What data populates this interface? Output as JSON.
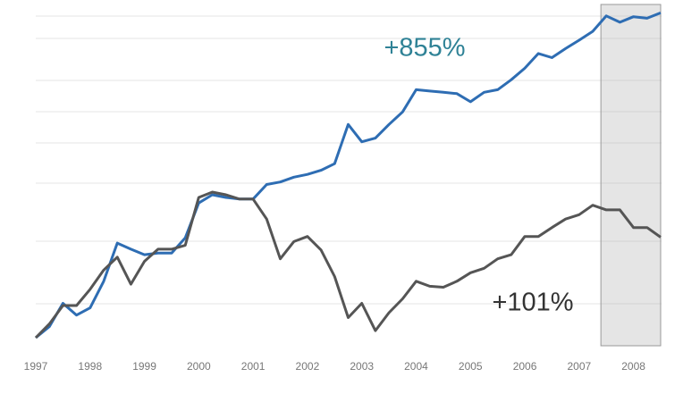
{
  "chart_data": {
    "type": "line",
    "x": [
      1997,
      1997.25,
      1997.5,
      1997.75,
      1998,
      1998.25,
      1998.5,
      1998.75,
      1999,
      1999.25,
      1999.5,
      1999.75,
      2000,
      2000.25,
      2000.5,
      2000.75,
      2001,
      2001.25,
      2001.5,
      2001.75,
      2002,
      2002.25,
      2002.5,
      2002.75,
      2003,
      2003.25,
      2003.5,
      2003.75,
      2004,
      2004.25,
      2004.5,
      2004.75,
      2005,
      2005.25,
      2005.5,
      2005.75,
      2006,
      2006.25,
      2006.5,
      2006.75,
      2007,
      2007.25,
      2007.5,
      2007.75,
      2008,
      2008.25,
      2008.5
    ],
    "series": [
      {
        "color": "#2e6db3",
        "values": [
          100,
          108,
          127,
          117,
          123,
          148,
          193,
          185,
          178,
          180,
          180,
          200,
          255,
          270,
          265,
          262,
          262,
          290,
          295,
          305,
          311,
          320,
          335,
          440,
          390,
          400,
          440,
          480,
          560,
          555,
          550,
          545,
          515,
          550,
          560,
          600,
          650,
          720,
          700,
          745,
          790,
          840,
          935,
          895,
          930,
          920,
          955
        ]
      },
      {
        "color": "#555555",
        "values": [
          100,
          110,
          125,
          125,
          140,
          160,
          175,
          145,
          170,
          185,
          185,
          190,
          265,
          275,
          270,
          262,
          262,
          228,
          173,
          195,
          202,
          184,
          153,
          115,
          127,
          105,
          119,
          131,
          148,
          143,
          142,
          148,
          157,
          162,
          173,
          178,
          202,
          202,
          215,
          228,
          235,
          251,
          243,
          243,
          215,
          215,
          201
        ]
      }
    ],
    "annotations": [
      "+855%",
      "+101%"
    ],
    "annotation_colors": [
      "#2f8296",
      "#333333"
    ],
    "xlim": [
      1997,
      2008.5
    ],
    "xticks": [
      1997,
      1998,
      1999,
      2000,
      2001,
      2002,
      2003,
      2004,
      2005,
      2006,
      2007,
      2008
    ],
    "ylim": [
      100,
      1000
    ],
    "log_y": true,
    "shaded_range": [
      2007.4,
      2008.5
    ]
  }
}
